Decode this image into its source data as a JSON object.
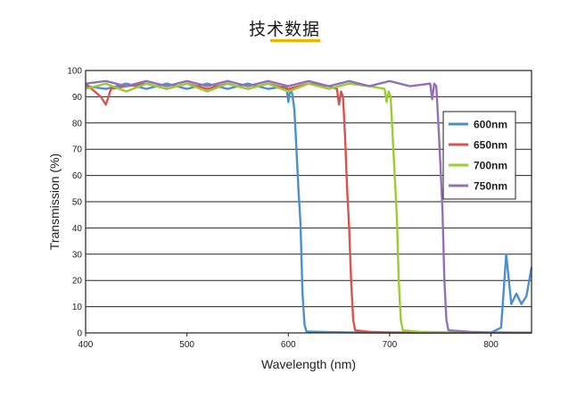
{
  "page": {
    "title": "技术数据"
  },
  "chart_data": {
    "type": "line",
    "title": "",
    "xlabel": "Wavelength (nm)",
    "ylabel": "Transmission (%)",
    "xlim": [
      400,
      840
    ],
    "ylim": [
      0,
      100
    ],
    "x_ticks": [
      400,
      500,
      600,
      700,
      800
    ],
    "y_ticks": [
      0,
      10,
      20,
      30,
      40,
      50,
      60,
      70,
      80,
      90,
      100
    ],
    "grid": "horizontal",
    "legend_position": "right",
    "series": [
      {
        "name": "600nm",
        "color": "#4a90cf",
        "points": [
          [
            400,
            94
          ],
          [
            420,
            93
          ],
          [
            440,
            95
          ],
          [
            460,
            93
          ],
          [
            480,
            95
          ],
          [
            500,
            93
          ],
          [
            520,
            95
          ],
          [
            540,
            93
          ],
          [
            560,
            95
          ],
          [
            580,
            93
          ],
          [
            598,
            94
          ],
          [
            600,
            88
          ],
          [
            602,
            93
          ],
          [
            604,
            91
          ],
          [
            606,
            85
          ],
          [
            608,
            70
          ],
          [
            610,
            55
          ],
          [
            612,
            42
          ],
          [
            614,
            15
          ],
          [
            616,
            3
          ],
          [
            618,
            0.5
          ],
          [
            640,
            0.3
          ],
          [
            660,
            0.2
          ],
          [
            700,
            0.1
          ],
          [
            750,
            0.1
          ],
          [
            800,
            0.1
          ],
          [
            810,
            2
          ],
          [
            815,
            30
          ],
          [
            820,
            11
          ],
          [
            825,
            15
          ],
          [
            830,
            11
          ],
          [
            835,
            14
          ],
          [
            840,
            25
          ]
        ]
      },
      {
        "name": "650nm",
        "color": "#d9534f",
        "points": [
          [
            400,
            95
          ],
          [
            415,
            90
          ],
          [
            420,
            87
          ],
          [
            425,
            93
          ],
          [
            440,
            94
          ],
          [
            460,
            95
          ],
          [
            480,
            93
          ],
          [
            500,
            95
          ],
          [
            520,
            93
          ],
          [
            540,
            95
          ],
          [
            560,
            93
          ],
          [
            580,
            95
          ],
          [
            600,
            93
          ],
          [
            620,
            95
          ],
          [
            640,
            94
          ],
          [
            648,
            93
          ],
          [
            650,
            87
          ],
          [
            652,
            92
          ],
          [
            654,
            90
          ],
          [
            656,
            75
          ],
          [
            658,
            55
          ],
          [
            660,
            40
          ],
          [
            662,
            20
          ],
          [
            664,
            5
          ],
          [
            666,
            1
          ],
          [
            680,
            0.4
          ],
          [
            700,
            0.2
          ],
          [
            750,
            0.1
          ],
          [
            800,
            0.1
          ],
          [
            840,
            0.1
          ]
        ]
      },
      {
        "name": "700nm",
        "color": "#9acd32",
        "points": [
          [
            400,
            93
          ],
          [
            420,
            95
          ],
          [
            440,
            92
          ],
          [
            460,
            95
          ],
          [
            480,
            93
          ],
          [
            500,
            95
          ],
          [
            520,
            92
          ],
          [
            540,
            95
          ],
          [
            560,
            93
          ],
          [
            580,
            95
          ],
          [
            600,
            92
          ],
          [
            620,
            95
          ],
          [
            640,
            93
          ],
          [
            660,
            95
          ],
          [
            680,
            94
          ],
          [
            695,
            93
          ],
          [
            697,
            88
          ],
          [
            699,
            92
          ],
          [
            701,
            90
          ],
          [
            703,
            75
          ],
          [
            705,
            60
          ],
          [
            707,
            45
          ],
          [
            709,
            20
          ],
          [
            711,
            5
          ],
          [
            713,
            1
          ],
          [
            730,
            0.4
          ],
          [
            760,
            0.2
          ],
          [
            800,
            0.1
          ],
          [
            840,
            0.1
          ]
        ]
      },
      {
        "name": "750nm",
        "color": "#9370b8",
        "points": [
          [
            400,
            95
          ],
          [
            420,
            96
          ],
          [
            440,
            94
          ],
          [
            460,
            96
          ],
          [
            480,
            94
          ],
          [
            500,
            96
          ],
          [
            520,
            94
          ],
          [
            540,
            96
          ],
          [
            560,
            94
          ],
          [
            580,
            96
          ],
          [
            600,
            94
          ],
          [
            620,
            96
          ],
          [
            640,
            94
          ],
          [
            660,
            96
          ],
          [
            680,
            94
          ],
          [
            700,
            96
          ],
          [
            720,
            94
          ],
          [
            740,
            95
          ],
          [
            742,
            89
          ],
          [
            744,
            95
          ],
          [
            746,
            94
          ],
          [
            748,
            80
          ],
          [
            750,
            65
          ],
          [
            752,
            48
          ],
          [
            754,
            20
          ],
          [
            756,
            5
          ],
          [
            758,
            1
          ],
          [
            780,
            0.4
          ],
          [
            800,
            0.2
          ],
          [
            840,
            0.1
          ]
        ]
      }
    ]
  }
}
